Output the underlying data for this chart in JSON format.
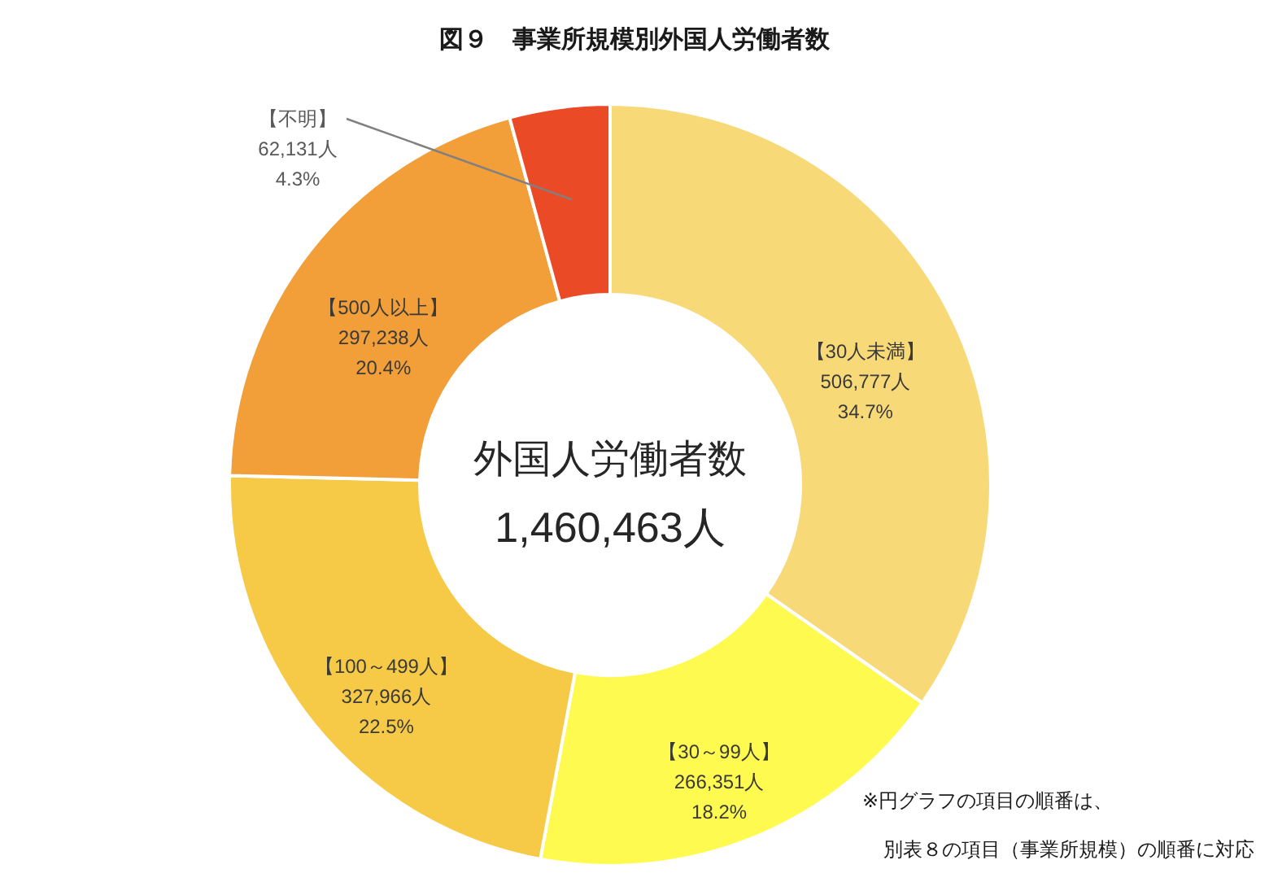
{
  "chart_data": {
    "type": "donut",
    "title": "図９　事業所規模別外国人労働者数",
    "categories": [
      "【30人未満】",
      "【30～99人】",
      "【100～499人】",
      "【500人以上】",
      "【不明】"
    ],
    "values": [
      506777,
      266351,
      327966,
      297238,
      62131
    ],
    "colors": [
      "#f8d978",
      "#fffa50",
      "#f6ca46",
      "#f29e39",
      "#eb4a26"
    ],
    "value_labels": [
      "506,777人\n34.7%",
      "266,351人\n18.2%",
      "327,966人\n22.5%",
      "297,238人\n20.4%",
      "62,131人\n4.3%"
    ],
    "annotations": [
      "外国人労働者数",
      "1,460,463人",
      "※円グラフの項目の順番は、",
      "別表８の項目（事業所規模）の順番に対応"
    ]
  }
}
